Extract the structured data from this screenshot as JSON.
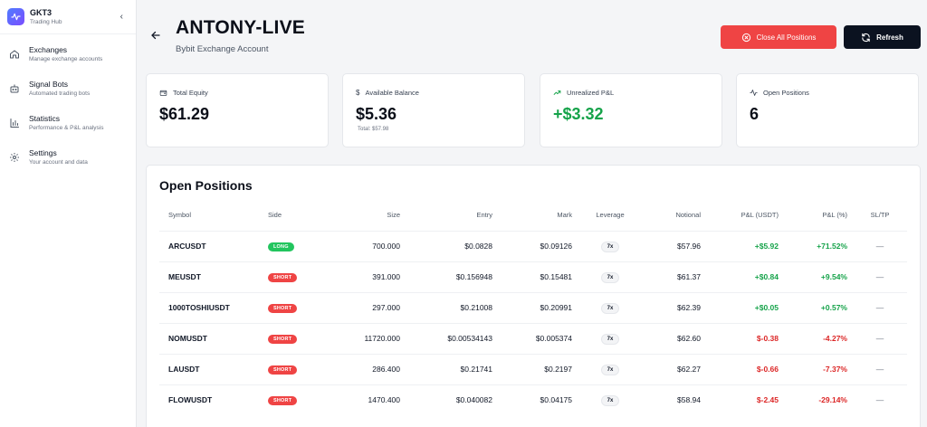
{
  "sidebar": {
    "brand_name": "GKT3",
    "brand_sub": "Trading Hub",
    "collapse_icon": "chevron-left-icon",
    "items": [
      {
        "label": "Exchanges",
        "desc": "Manage exchange accounts",
        "icon": "home-icon"
      },
      {
        "label": "Signal Bots",
        "desc": "Automated trading bots",
        "icon": "bot-icon"
      },
      {
        "label": "Statistics",
        "desc": "Performance & P&L analysis",
        "icon": "bar-chart-icon"
      },
      {
        "label": "Settings",
        "desc": "Your account and data",
        "icon": "gear-icon"
      }
    ]
  },
  "header": {
    "title": "ANTONY-LIVE",
    "subtitle": "Bybit Exchange Account",
    "close_all_label": "Close All Positions",
    "refresh_label": "Refresh"
  },
  "cards": [
    {
      "label": "Total Equity",
      "value": "$61.29",
      "note": "",
      "icon": "wallet-icon"
    },
    {
      "label": "Available Balance",
      "value": "$5.36",
      "note": "Total: $57.98",
      "icon": "dollar-icon"
    },
    {
      "label": "Unrealized P&L",
      "value": "+$3.32",
      "note": "",
      "icon": "trending-up-icon"
    },
    {
      "label": "Open Positions",
      "value": "6",
      "note": "",
      "icon": "activity-icon"
    }
  ],
  "positions": {
    "title": "Open Positions",
    "columns": [
      "Symbol",
      "Side",
      "Size",
      "Entry",
      "Mark",
      "Leverage",
      "Notional",
      "P&L (USDT)",
      "P&L (%)",
      "SL/TP"
    ],
    "rows": [
      {
        "symbol": "ARCUSDT",
        "side": "LONG",
        "size": "700.000",
        "entry": "$0.0828",
        "mark": "$0.09126",
        "leverage": "7x",
        "notional": "$57.96",
        "pnl": "+$5.92",
        "pnl_pct": "+71.52%",
        "sltp": "—"
      },
      {
        "symbol": "MEUSDT",
        "side": "SHORT",
        "size": "391.000",
        "entry": "$0.156948",
        "mark": "$0.15481",
        "leverage": "7x",
        "notional": "$61.37",
        "pnl": "+$0.84",
        "pnl_pct": "+9.54%",
        "sltp": "—"
      },
      {
        "symbol": "1000TOSHIUSDT",
        "side": "SHORT",
        "size": "297.000",
        "entry": "$0.21008",
        "mark": "$0.20991",
        "leverage": "7x",
        "notional": "$62.39",
        "pnl": "+$0.05",
        "pnl_pct": "+0.57%",
        "sltp": "—"
      },
      {
        "symbol": "NOMUSDT",
        "side": "SHORT",
        "size": "11720.000",
        "entry": "$0.00534143",
        "mark": "$0.005374",
        "leverage": "7x",
        "notional": "$62.60",
        "pnl": "$-0.38",
        "pnl_pct": "-4.27%",
        "sltp": "—"
      },
      {
        "symbol": "LAUSDT",
        "side": "SHORT",
        "size": "286.400",
        "entry": "$0.21741",
        "mark": "$0.2197",
        "leverage": "7x",
        "notional": "$62.27",
        "pnl": "$-0.66",
        "pnl_pct": "-7.37%",
        "sltp": "—"
      },
      {
        "symbol": "FLOWUSDT",
        "side": "SHORT",
        "size": "1470.400",
        "entry": "$0.040082",
        "mark": "$0.04175",
        "leverage": "7x",
        "notional": "$58.94",
        "pnl": "$-2.45",
        "pnl_pct": "-29.14%",
        "sltp": "—"
      }
    ]
  },
  "colors": {
    "long": "#22c55e",
    "short": "#ef4444",
    "positive": "#16a34a",
    "negative": "#dc2626",
    "close_button": "#ef4444",
    "refresh_button": "#0b1220"
  }
}
